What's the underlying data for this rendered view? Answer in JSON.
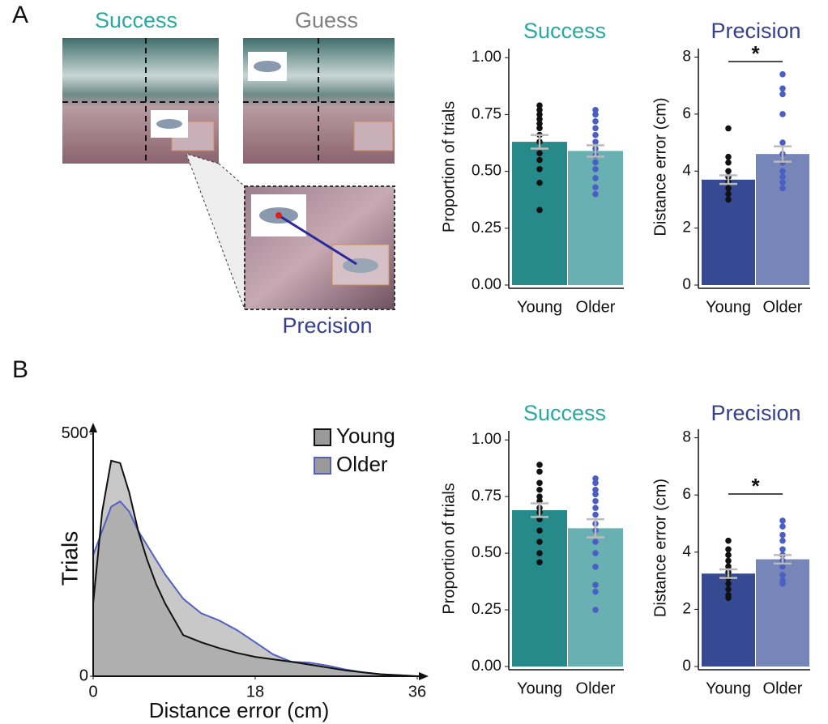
{
  "figure": {
    "panel_labels": [
      "A",
      "B"
    ],
    "illustration": {
      "titles": [
        "Success",
        "Guess",
        "Precision"
      ],
      "title_colors": [
        "#2aa9a0",
        "#808080",
        "#36408f"
      ]
    }
  },
  "chart_data": [
    {
      "type": "bar",
      "title": "Success",
      "title_color": "#2aa9a0",
      "y_label": "Proportion of trials",
      "categories": [
        "Young",
        "Older"
      ],
      "values": [
        0.63,
        0.59
      ],
      "errors": [
        0.03,
        0.025
      ],
      "colors": [
        "#268a8a",
        "#69b0b3"
      ],
      "points": [
        [
          0.79,
          0.77,
          0.75,
          0.73,
          0.71,
          0.69,
          0.66,
          0.63,
          0.58,
          0.55,
          0.51,
          0.45,
          0.33
        ],
        [
          0.77,
          0.75,
          0.72,
          0.69,
          0.66,
          0.63,
          0.6,
          0.57,
          0.54,
          0.51,
          0.47,
          0.43,
          0.4
        ]
      ],
      "point_colors": [
        "#111111",
        "#4a5ec4"
      ],
      "ylim": [
        0,
        1.04
      ],
      "yticks": [
        {
          "value": 0,
          "label": "0.00"
        },
        {
          "value": 0.25,
          "label": "0.25"
        },
        {
          "value": 0.5,
          "label": "0.50"
        },
        {
          "value": 0.75,
          "label": "0.75"
        },
        {
          "value": 1,
          "label": "1.00"
        }
      ]
    },
    {
      "type": "bar",
      "title": "Precision",
      "title_color": "#36408f",
      "y_label": "Distance error (cm)",
      "annotation": "*",
      "categories": [
        "Young",
        "Older"
      ],
      "values": [
        3.7,
        4.6
      ],
      "errors": [
        0.15,
        0.27
      ],
      "colors": [
        "#354a92",
        "#7686b8"
      ],
      "points": [
        [
          5.5,
          4.5,
          4.3,
          4.0,
          3.8,
          3.6,
          3.4,
          3.2,
          3.0
        ],
        [
          7.4,
          6.9,
          6.7,
          6.0,
          5.0,
          4.6,
          4.3,
          4.0,
          3.8,
          3.6,
          3.4
        ]
      ],
      "point_colors": [
        "#111111",
        "#4a5ec4"
      ],
      "ylim": [
        0,
        8.3
      ],
      "yticks": [
        0,
        2,
        4,
        6,
        8
      ]
    },
    {
      "type": "area",
      "y_label": "Trials",
      "x_label": "Distance error (cm)",
      "x": [
        0,
        1,
        2,
        3,
        4,
        5,
        6,
        7,
        8,
        10,
        12,
        14,
        16,
        18,
        20,
        22,
        24,
        26,
        28,
        30,
        32,
        34,
        36
      ],
      "series": [
        {
          "name": "Young",
          "color": "#111111",
          "values": [
            150,
            340,
            445,
            440,
            380,
            300,
            240,
            190,
            150,
            85,
            70,
            58,
            48,
            40,
            35,
            30,
            24,
            18,
            12,
            8,
            4,
            2,
            0
          ]
        },
        {
          "name": "Older",
          "color": "#5560c0",
          "values": [
            250,
            300,
            350,
            361,
            340,
            300,
            270,
            240,
            210,
            160,
            130,
            115,
            95,
            70,
            45,
            30,
            28,
            22,
            14,
            8,
            4,
            2,
            0
          ]
        }
      ],
      "fill": "#9a9a9a",
      "xlim": [
        0,
        36
      ],
      "xticks": [
        0,
        18,
        36
      ],
      "ylim": [
        0,
        520
      ],
      "yticks": [
        0,
        500
      ]
    },
    {
      "type": "bar",
      "title": "Success",
      "title_color": "#2aa9a0",
      "y_label": "Proportion of trials",
      "categories": [
        "Young",
        "Older"
      ],
      "values": [
        0.69,
        0.61
      ],
      "errors": [
        0.03,
        0.04
      ],
      "colors": [
        "#268a8a",
        "#69b0b3"
      ],
      "points": [
        [
          0.89,
          0.86,
          0.81,
          0.78,
          0.75,
          0.73,
          0.7,
          0.68,
          0.65,
          0.6,
          0.55,
          0.5,
          0.46
        ],
        [
          0.83,
          0.81,
          0.78,
          0.76,
          0.73,
          0.7,
          0.67,
          0.63,
          0.6,
          0.55,
          0.5,
          0.44,
          0.36,
          0.33,
          0.25
        ]
      ],
      "point_colors": [
        "#111111",
        "#4a5ec4"
      ],
      "ylim": [
        0,
        1.04
      ],
      "yticks": [
        {
          "value": 0,
          "label": "0.00"
        },
        {
          "value": 0.25,
          "label": "0.25"
        },
        {
          "value": 0.5,
          "label": "0.50"
        },
        {
          "value": 0.75,
          "label": "0.75"
        },
        {
          "value": 1,
          "label": "1.00"
        }
      ]
    },
    {
      "type": "bar",
      "title": "Precision",
      "title_color": "#36408f",
      "y_label": "Distance error (cm)",
      "annotation": "*",
      "categories": [
        "Young",
        "Older"
      ],
      "values": [
        3.25,
        3.75
      ],
      "errors": [
        0.15,
        0.15
      ],
      "colors": [
        "#354a92",
        "#7686b8"
      ],
      "points": [
        [
          4.4,
          4.1,
          3.9,
          3.7,
          3.5,
          3.3,
          3.1,
          2.9,
          2.7,
          2.5,
          2.4
        ],
        [
          5.1,
          4.9,
          4.6,
          4.4,
          4.1,
          3.9,
          3.7,
          3.5,
          3.2,
          3.0,
          2.9
        ]
      ],
      "point_colors": [
        "#111111",
        "#4a5ec4"
      ],
      "ylim": [
        0,
        8.3
      ],
      "yticks": [
        0,
        2,
        4,
        6,
        8
      ]
    }
  ]
}
